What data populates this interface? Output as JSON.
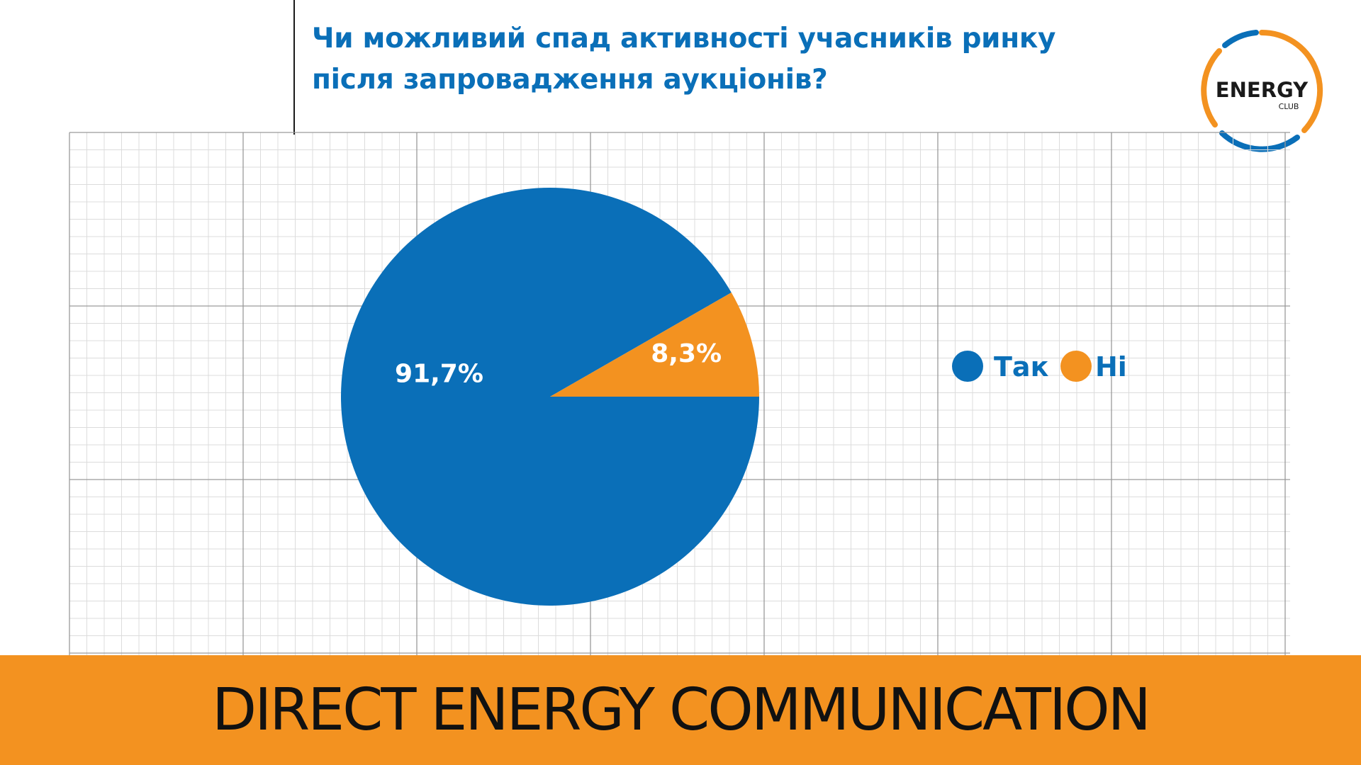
{
  "header": {
    "title_line1": "Чи можливий спад активності учасників ринку",
    "title_line2": "після запровадження аукціонів?"
  },
  "logo": {
    "text": "ENERGY",
    "subtext": "CLUB",
    "color_orange": "#f39220",
    "color_blue": "#0a6fb8"
  },
  "chart_data": {
    "type": "pie",
    "categories": [
      "Так",
      "Ні"
    ],
    "values": [
      91.7,
      8.3
    ],
    "data_labels": [
      "91,7%",
      "8,3%"
    ],
    "colors": [
      "#0a6fb8",
      "#f39220"
    ],
    "legend_position": "right",
    "grid": true
  },
  "footer": {
    "text": "DIRECT ENERGY COMMUNICATION"
  },
  "colors": {
    "accent_blue": "#0a6fb8",
    "accent_orange": "#f39220"
  }
}
